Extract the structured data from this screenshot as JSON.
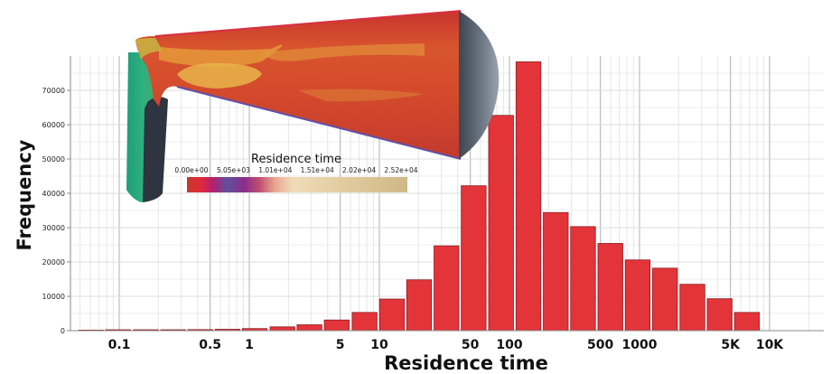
{
  "chart_data": {
    "type": "bar",
    "xlabel": "Residence time",
    "ylabel": "Frequency",
    "x_scale": "log",
    "ylim": [
      0,
      80000
    ],
    "y_ticks": [
      0,
      10000,
      20000,
      30000,
      40000,
      50000,
      60000,
      70000
    ],
    "x_tick_labels": [
      "0.1",
      "0.5",
      "1",
      "5",
      "10",
      "50",
      "100",
      "500",
      "1000",
      "5K",
      "10K"
    ],
    "bar_color": "#e3343a",
    "bars": [
      {
        "x": 0.061,
        "value": 0
      },
      {
        "x": 0.098,
        "value": 50
      },
      {
        "x": 0.16,
        "value": 100
      },
      {
        "x": 0.26,
        "value": 150
      },
      {
        "x": 0.42,
        "value": 300
      },
      {
        "x": 0.68,
        "value": 400
      },
      {
        "x": 1.1,
        "value": 600
      },
      {
        "x": 1.8,
        "value": 1100
      },
      {
        "x": 2.9,
        "value": 1700
      },
      {
        "x": 4.7,
        "value": 3100
      },
      {
        "x": 7.7,
        "value": 5300
      },
      {
        "x": 12.5,
        "value": 9200
      },
      {
        "x": 20.2,
        "value": 14800
      },
      {
        "x": 32.8,
        "value": 24700
      },
      {
        "x": 53.1,
        "value": 42200
      },
      {
        "x": 86.2,
        "value": 62700
      },
      {
        "x": 140,
        "value": 78300
      },
      {
        "x": 227,
        "value": 34400
      },
      {
        "x": 368,
        "value": 30300
      },
      {
        "x": 597,
        "value": 25400
      },
      {
        "x": 968,
        "value": 20600
      },
      {
        "x": 1570,
        "value": 18200
      },
      {
        "x": 2550,
        "value": 13500
      },
      {
        "x": 4130,
        "value": 9300
      },
      {
        "x": 6700,
        "value": 5300
      }
    ],
    "grid": true
  },
  "colorbar": {
    "title": "Residence time",
    "tick_labels": [
      "0.00e+00",
      "5.05e+03",
      "1.01e+04",
      "1.51e+04",
      "2.02e+04",
      "2.52e+04"
    ]
  }
}
